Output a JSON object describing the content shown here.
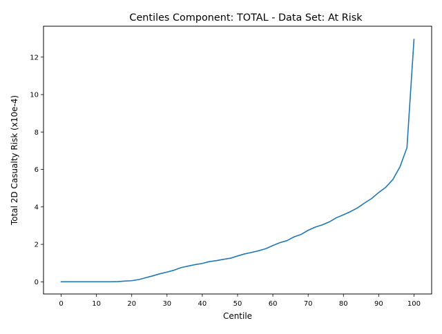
{
  "chart_data": {
    "type": "line",
    "title": "Centiles Component: TOTAL - Data Set: At Risk",
    "xlabel": "Centile",
    "ylabel": "Total 2D Casualty Risk (x10e-4)",
    "xlim": [
      -5,
      105
    ],
    "ylim": [
      -0.65,
      13.65
    ],
    "xticks": [
      0,
      10,
      20,
      30,
      40,
      50,
      60,
      70,
      80,
      90,
      100
    ],
    "xtick_labels": [
      "0",
      "10",
      "20",
      "30",
      "40",
      "50",
      "60",
      "70",
      "80",
      "90",
      "100"
    ],
    "yticks": [
      0,
      2,
      4,
      6,
      8,
      10,
      12
    ],
    "ytick_labels": [
      "0",
      "2",
      "4",
      "6",
      "8",
      "10",
      "12"
    ],
    "grid": false,
    "legend": "none",
    "series_color": "#1f77b4",
    "series": [
      {
        "x": [
          0,
          2,
          4,
          6,
          8,
          10,
          12,
          14,
          16,
          18,
          20,
          22,
          24,
          26,
          28,
          30,
          32,
          34,
          36,
          38,
          40,
          42,
          44,
          46,
          48,
          50,
          52,
          54,
          56,
          58,
          60,
          62,
          64,
          66,
          68,
          70,
          72,
          74,
          76,
          78,
          80,
          82,
          84,
          86,
          88,
          90,
          92,
          94,
          96,
          98,
          100
        ],
        "y": [
          0.0,
          0.0,
          0.0,
          0.0,
          0.0,
          0.0,
          0.0,
          0.0,
          0.01,
          0.04,
          0.06,
          0.12,
          0.22,
          0.32,
          0.43,
          0.52,
          0.62,
          0.76,
          0.84,
          0.92,
          0.98,
          1.08,
          1.13,
          1.2,
          1.26,
          1.38,
          1.49,
          1.57,
          1.66,
          1.77,
          1.94,
          2.09,
          2.2,
          2.4,
          2.53,
          2.75,
          2.92,
          3.04,
          3.2,
          3.42,
          3.58,
          3.75,
          3.95,
          4.21,
          4.45,
          4.77,
          5.05,
          5.46,
          6.13,
          7.16,
          12.95
        ]
      }
    ]
  }
}
